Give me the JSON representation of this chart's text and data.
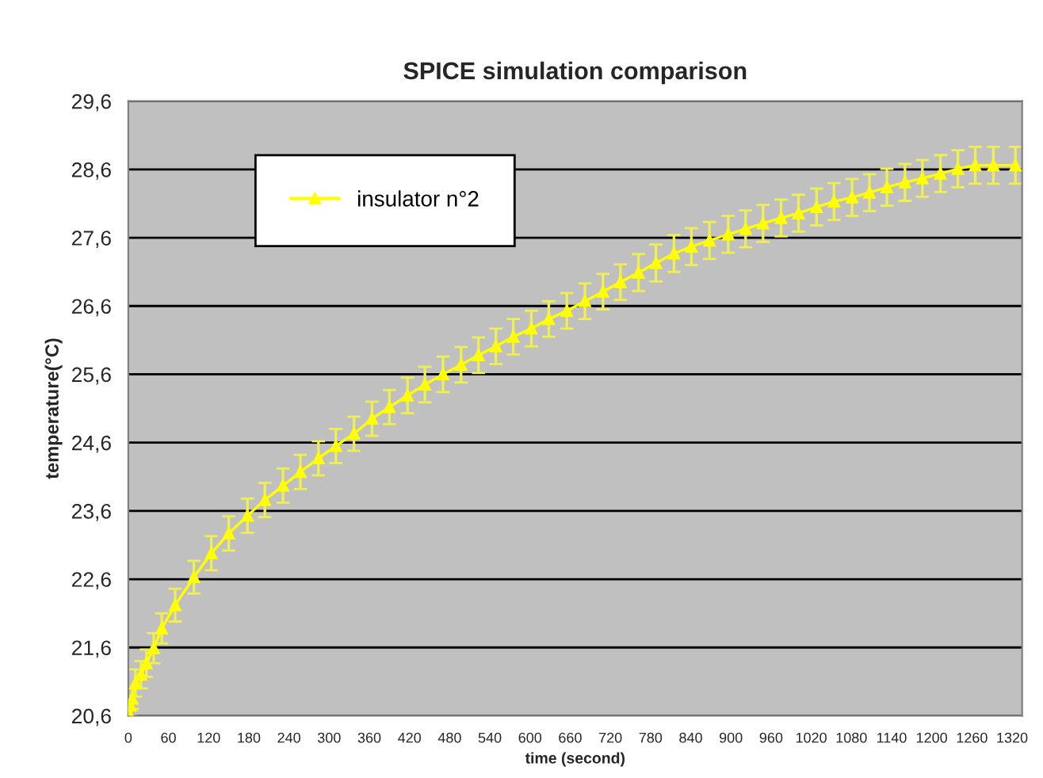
{
  "chart_data": {
    "type": "line",
    "title": "SPICE simulation comparison",
    "xlabel": "time (second)",
    "ylabel": "temperature(°C)",
    "x": [
      0,
      3,
      6,
      10.7,
      19,
      27,
      38,
      50,
      70,
      98,
      124,
      150,
      178,
      204,
      231,
      257,
      284,
      310,
      337,
      364,
      390,
      417,
      443,
      470,
      497,
      523,
      549,
      575,
      602,
      628,
      655,
      682,
      709,
      735,
      762,
      788,
      815,
      841,
      868,
      896,
      922,
      948,
      975,
      1001,
      1028,
      1054,
      1081,
      1107,
      1133,
      1160,
      1186,
      1213,
      1239,
      1265,
      1292,
      1325
    ],
    "series": [
      {
        "name": "insulator n°2",
        "color": "#ffff00",
        "marker": "triangle",
        "values": [
          20.65,
          20.75,
          20.85,
          21.08,
          21.2,
          21.37,
          21.59,
          21.88,
          22.22,
          22.63,
          22.98,
          23.27,
          23.53,
          23.76,
          23.97,
          24.17,
          24.37,
          24.55,
          24.73,
          24.95,
          25.12,
          25.29,
          25.45,
          25.6,
          25.74,
          25.88,
          26.01,
          26.15,
          26.27,
          26.41,
          26.53,
          26.67,
          26.81,
          26.95,
          27.09,
          27.23,
          27.37,
          27.47,
          27.56,
          27.65,
          27.73,
          27.81,
          27.89,
          27.96,
          28.05,
          28.13,
          28.19,
          28.26,
          28.34,
          28.41,
          28.47,
          28.54,
          28.61,
          28.66,
          28.66,
          28.66
        ],
        "errors": [
          0.15,
          0.15,
          0.15,
          0.2,
          0.2,
          0.2,
          0.22,
          0.22,
          0.24,
          0.24,
          0.25,
          0.25,
          0.25,
          0.25,
          0.25,
          0.25,
          0.25,
          0.25,
          0.25,
          0.25,
          0.25,
          0.26,
          0.26,
          0.26,
          0.26,
          0.26,
          0.26,
          0.26,
          0.26,
          0.26,
          0.26,
          0.26,
          0.26,
          0.26,
          0.27,
          0.27,
          0.27,
          0.27,
          0.27,
          0.27,
          0.27,
          0.27,
          0.27,
          0.27,
          0.27,
          0.27,
          0.27,
          0.27,
          0.27,
          0.27,
          0.27,
          0.27,
          0.27,
          0.27,
          0.27,
          0.27
        ]
      }
    ],
    "xlim": [
      0,
      1335
    ],
    "xticks": [
      0,
      60,
      120,
      180,
      240,
      300,
      360,
      420,
      480,
      540,
      600,
      660,
      720,
      780,
      840,
      900,
      960,
      1020,
      1080,
      1140,
      1200,
      1260,
      1320
    ],
    "ylim": [
      20.6,
      29.6
    ],
    "yticks": [
      {
        "value": 20.6,
        "label": "20,6"
      },
      {
        "value": 21.6,
        "label": "21,6"
      },
      {
        "value": 22.6,
        "label": "22,6"
      },
      {
        "value": 23.6,
        "label": "23,6"
      },
      {
        "value": 24.6,
        "label": "24,6"
      },
      {
        "value": 25.6,
        "label": "25,6"
      },
      {
        "value": 26.6,
        "label": "26,6"
      },
      {
        "value": 27.6,
        "label": "27,6"
      },
      {
        "value": 28.6,
        "label": "28,6"
      },
      {
        "value": 29.6,
        "label": "29,6"
      }
    ],
    "grid": "y",
    "legend": "top left"
  }
}
